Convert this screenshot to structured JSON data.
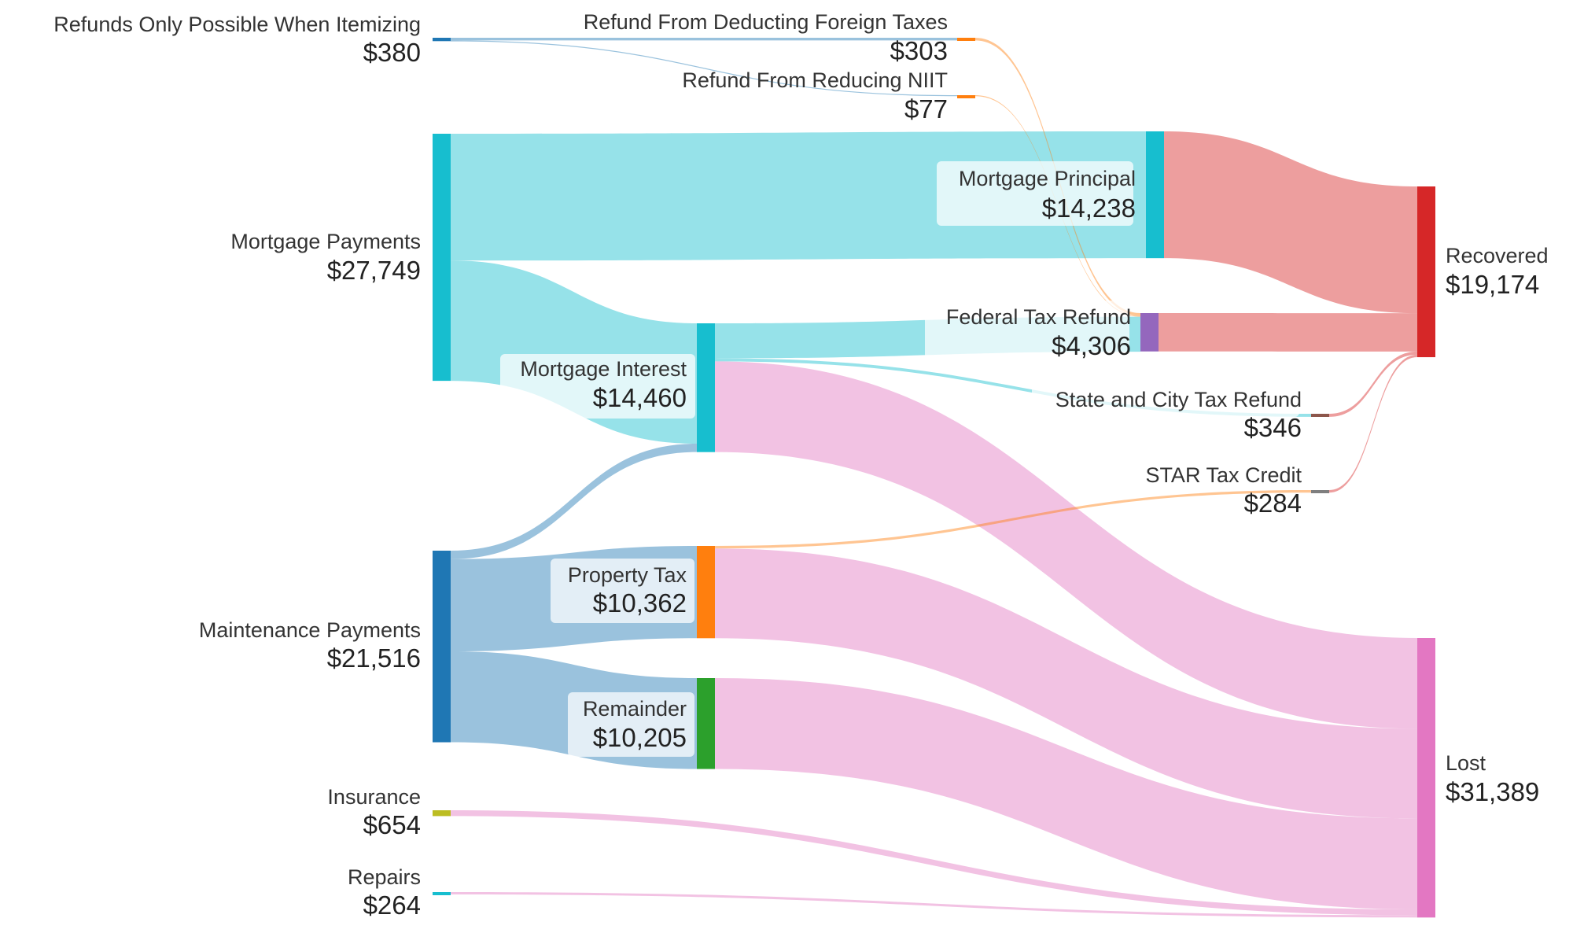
{
  "chart_data": {
    "type": "sankey",
    "title": "",
    "nodes": [
      {
        "id": "refunds_itemizing",
        "name": "Refunds Only Possible When Itemizing",
        "value_label": "$380",
        "value": 380,
        "color": "#1f77b4"
      },
      {
        "id": "mortgage_payments",
        "name": "Mortgage Payments",
        "value_label": "$27,749",
        "value": 27749,
        "color": "#17becf"
      },
      {
        "id": "maintenance_payments",
        "name": "Maintenance Payments",
        "value_label": "$21,516",
        "value": 21516,
        "color": "#1f77b4"
      },
      {
        "id": "insurance",
        "name": "Insurance",
        "value_label": "$654",
        "value": 654,
        "color": "#bcbd22"
      },
      {
        "id": "repairs",
        "name": "Repairs",
        "value_label": "$264",
        "value": 264,
        "color": "#17becf"
      },
      {
        "id": "refund_foreign",
        "name": "Refund From Deducting Foreign Taxes",
        "value_label": "$303",
        "value": 303,
        "color": "#ff7f0e"
      },
      {
        "id": "refund_niit",
        "name": "Refund From Reducing NIIT",
        "value_label": "$77",
        "value": 77,
        "color": "#ff7f0e"
      },
      {
        "id": "mortgage_interest",
        "name": "Mortgage Interest",
        "value_label": "$14,460",
        "value": 14460,
        "color": "#17becf"
      },
      {
        "id": "property_tax",
        "name": "Property Tax",
        "value_label": "$10,362",
        "value": 10362,
        "color": "#ff7f0e"
      },
      {
        "id": "remainder",
        "name": "Remainder",
        "value_label": "$10,205",
        "value": 10205,
        "color": "#2ca02c"
      },
      {
        "id": "mortgage_principal",
        "name": "Mortgage Principal",
        "value_label": "$14,238",
        "value": 14238,
        "color": "#17becf"
      },
      {
        "id": "federal_refund",
        "name": "Federal Tax Refund",
        "value_label": "$4,306",
        "value": 4306,
        "color": "#9467bd"
      },
      {
        "id": "state_city_refund",
        "name": "State and City Tax Refund",
        "value_label": "$346",
        "value": 346,
        "color": "#8c564b"
      },
      {
        "id": "star_credit",
        "name": "STAR Tax Credit",
        "value_label": "$284",
        "value": 284,
        "color": "#7f7f7f"
      },
      {
        "id": "recovered",
        "name": "Recovered",
        "value_label": "$19,174",
        "value": 19174,
        "color": "#d62728"
      },
      {
        "id": "lost",
        "name": "Lost",
        "value_label": "$31,389",
        "value": 31389,
        "color": "#e377c2"
      }
    ],
    "links": [
      {
        "source": "refunds_itemizing",
        "target": "refund_foreign",
        "value": 303
      },
      {
        "source": "refunds_itemizing",
        "target": "refund_niit",
        "value": 77
      },
      {
        "source": "mortgage_payments",
        "target": "mortgage_principal",
        "value": 14238
      },
      {
        "source": "mortgage_payments",
        "target": "mortgage_interest",
        "value": 13511
      },
      {
        "source": "maintenance_payments",
        "target": "mortgage_interest",
        "value": 949
      },
      {
        "source": "maintenance_payments",
        "target": "property_tax",
        "value": 10362
      },
      {
        "source": "maintenance_payments",
        "target": "remainder",
        "value": 10205
      },
      {
        "source": "refund_foreign",
        "target": "federal_refund",
        "value": 303
      },
      {
        "source": "refund_niit",
        "target": "federal_refund",
        "value": 77
      },
      {
        "source": "mortgage_interest",
        "target": "federal_refund",
        "value": 3926
      },
      {
        "source": "mortgage_interest",
        "target": "state_city_refund",
        "value": 346
      },
      {
        "source": "mortgage_interest",
        "target": "lost",
        "value": 10188
      },
      {
        "source": "property_tax",
        "target": "star_credit",
        "value": 284
      },
      {
        "source": "property_tax",
        "target": "lost",
        "value": 10078
      },
      {
        "source": "remainder",
        "target": "lost",
        "value": 10205
      },
      {
        "source": "insurance",
        "target": "lost",
        "value": 654
      },
      {
        "source": "repairs",
        "target": "lost",
        "value": 264
      },
      {
        "source": "mortgage_principal",
        "target": "recovered",
        "value": 14238
      },
      {
        "source": "federal_refund",
        "target": "recovered",
        "value": 4306
      },
      {
        "source": "state_city_refund",
        "target": "recovered",
        "value": 346
      },
      {
        "source": "star_credit",
        "target": "recovered",
        "value": 284
      }
    ]
  }
}
